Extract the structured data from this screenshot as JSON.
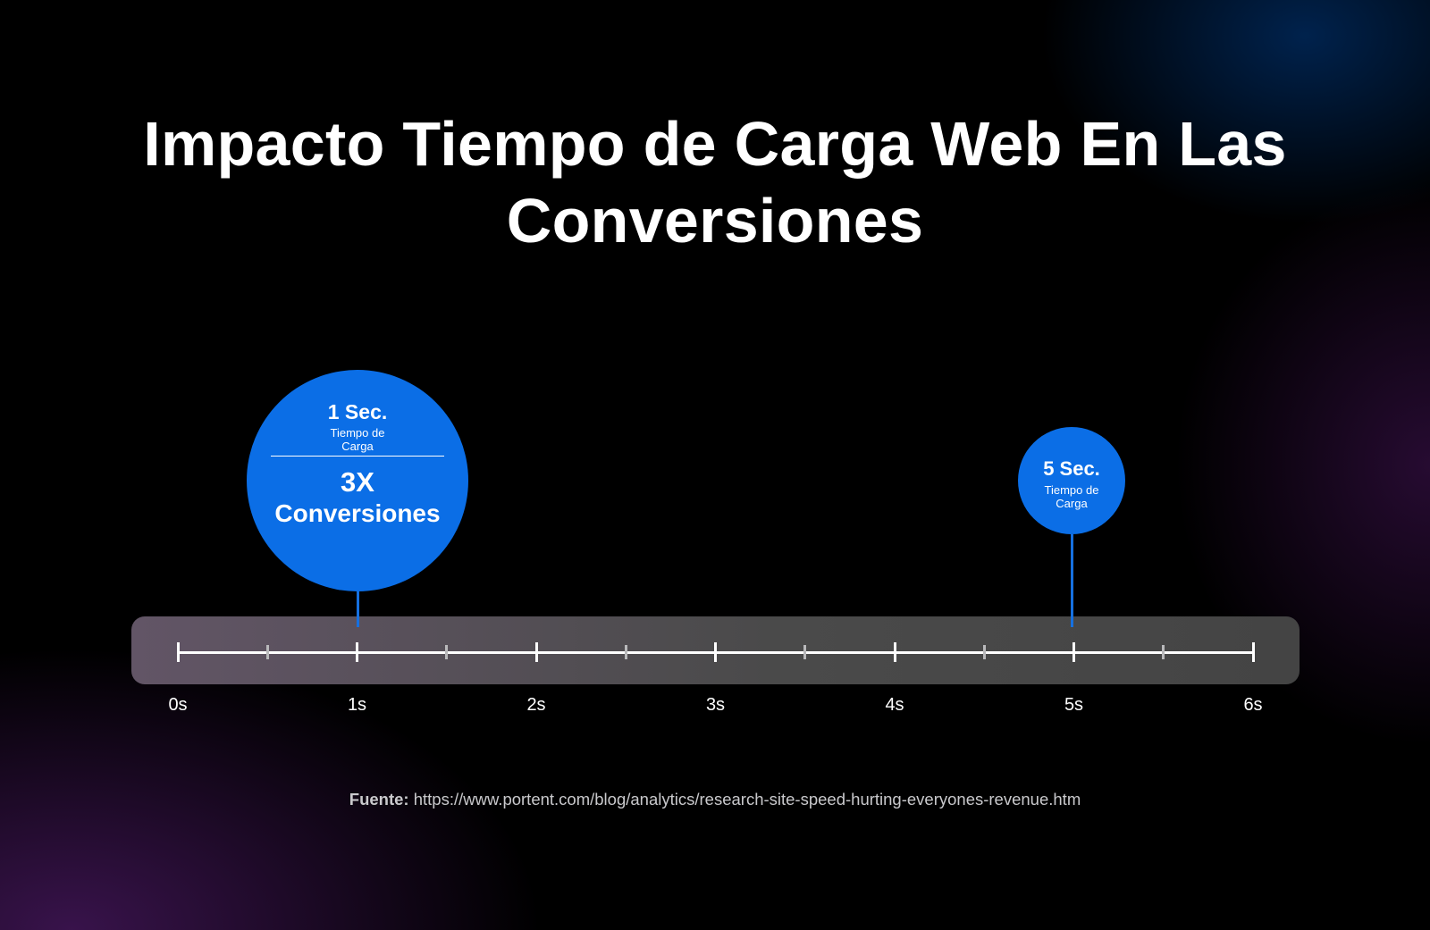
{
  "title": "Impacto Tiempo de Carga Web En Las Conversiones",
  "timeline": {
    "ticks": [
      "0s",
      "1s",
      "2s",
      "3s",
      "4s",
      "5s",
      "6s"
    ]
  },
  "markers": [
    {
      "time": "1 Sec.",
      "label": "Tiempo de Carga",
      "multiplier": "3X",
      "result": "Conversiones"
    },
    {
      "time": "5 Sec.",
      "label": "Tiempo de Carga"
    }
  ],
  "source": {
    "label": "Fuente:",
    "url": "https://www.portent.com/blog/analytics/research-site-speed-hurting-everyones-revenue.htm"
  },
  "colors": {
    "accent": "#0b6ee6",
    "background": "#000000",
    "track": "#4a4a4a"
  }
}
